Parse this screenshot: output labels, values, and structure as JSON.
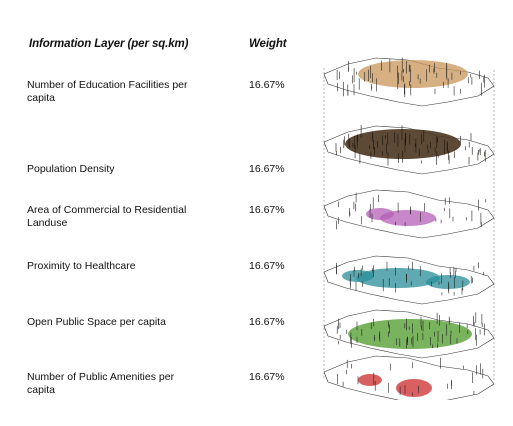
{
  "table": {
    "header_layer": "Information Layer (per sq.km)",
    "header_weight": "Weight",
    "rows": [
      {
        "label": "Number of Education Facilities per capita",
        "weight": "16.67%"
      },
      {
        "label": "Population Density",
        "weight": "16.67%"
      },
      {
        "label": "Area of Commercial to Residential Landuse",
        "weight": "16.67%"
      },
      {
        "label": "Proximity to Healthcare",
        "weight": "16.67%"
      },
      {
        "label": "Open Public Space per capita",
        "weight": "16.67%"
      },
      {
        "label": "Number of Public Amenities per capita",
        "weight": "16.67%"
      }
    ]
  },
  "map_layers": [
    {
      "name": "education-facilities",
      "color": "#c8955a"
    },
    {
      "name": "composite",
      "color": "#4a3620"
    },
    {
      "name": "population-density",
      "color": "#b55fb5"
    },
    {
      "name": "commercial-residential",
      "color": "#2a8e98"
    },
    {
      "name": "healthcare",
      "color": "#4e9a28"
    },
    {
      "name": "public-amenities",
      "color": "#cc2b2b"
    }
  ]
}
